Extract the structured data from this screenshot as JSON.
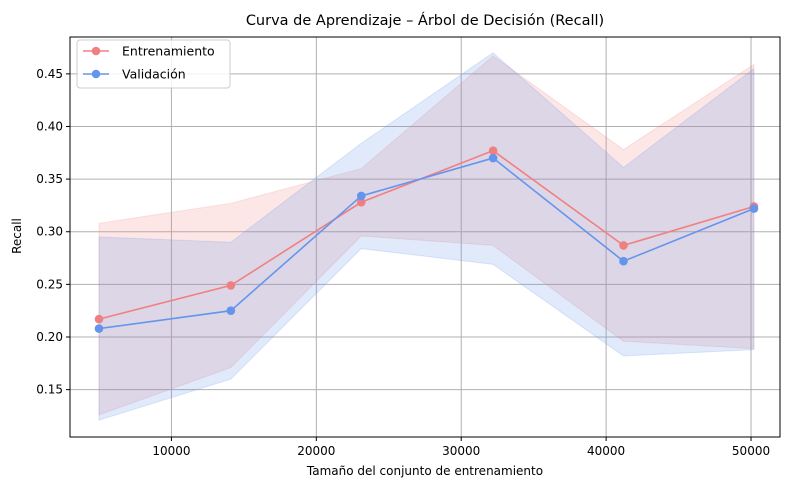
{
  "chart_data": {
    "type": "line",
    "title": "Curva de Aprendizaje – Árbol de Decisión (Recall)",
    "xlabel": "Tamaño del conjunto de entrenamiento",
    "ylabel": "Recall",
    "xlim": [
      3000,
      52000
    ],
    "ylim": [
      0.105,
      0.485
    ],
    "xticks": [
      10000,
      20000,
      30000,
      40000,
      50000
    ],
    "yticks": [
      0.15,
      0.2,
      0.25,
      0.3,
      0.35,
      0.4,
      0.45
    ],
    "grid": true,
    "legend_position": "top-left",
    "x": [
      5000,
      14100,
      23100,
      32200,
      41200,
      50200
    ],
    "series": [
      {
        "name": "Entrenamiento",
        "color": "#f08080",
        "values": [
          0.217,
          0.249,
          0.328,
          0.377,
          0.287,
          0.324
        ],
        "band_upper": [
          0.308,
          0.327,
          0.36,
          0.467,
          0.378,
          0.459
        ],
        "band_lower": [
          0.126,
          0.171,
          0.296,
          0.287,
          0.196,
          0.189
        ]
      },
      {
        "name": "Validación",
        "color": "#6495ed",
        "values": [
          0.208,
          0.225,
          0.334,
          0.37,
          0.272,
          0.322
        ],
        "band_upper": [
          0.295,
          0.29,
          0.384,
          0.47,
          0.361,
          0.455
        ],
        "band_lower": [
          0.121,
          0.16,
          0.284,
          0.269,
          0.182,
          0.188
        ]
      }
    ]
  }
}
